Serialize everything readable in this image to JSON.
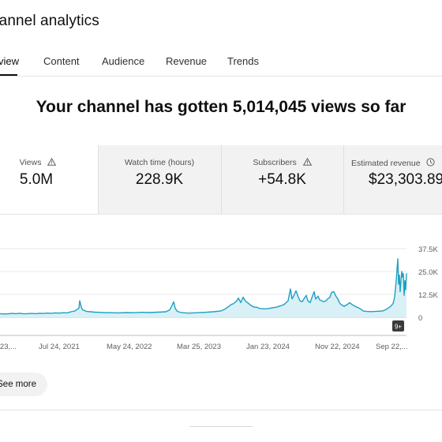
{
  "header": {
    "title": "hannel analytics"
  },
  "tabs": [
    {
      "label": "view",
      "active": true
    },
    {
      "label": "Content",
      "active": false
    },
    {
      "label": "Audience",
      "active": false
    },
    {
      "label": "Revenue",
      "active": false
    },
    {
      "label": "Trends",
      "active": false
    }
  ],
  "headline": "Your channel has gotten 5,014,045 views so far",
  "kpis": [
    {
      "label": "Views",
      "value": "5.0M",
      "icon": "warning-icon"
    },
    {
      "label": "Watch time (hours)",
      "value": "228.9K"
    },
    {
      "label": "Subscribers",
      "value": "+54.8K",
      "icon": "warning-icon"
    },
    {
      "label": "Estimated revenue",
      "value": "$23,303.89",
      "icon": "clock-icon"
    }
  ],
  "chart_data": {
    "type": "area",
    "y_ticks": [
      "37.5K",
      "25.0K",
      "12.5K",
      "0"
    ],
    "ylim": [
      0,
      37500
    ],
    "x_labels": [
      "p 23,...",
      "Jul 24, 2021",
      "May 24, 2022",
      "Mar 25, 2023",
      "Jan 23, 2024",
      "Nov 22, 2024",
      "Sep 22,..."
    ],
    "badge": "9+",
    "series_color": "#1ea0c3",
    "x": [
      0,
      5,
      10,
      15,
      20,
      25,
      30,
      35,
      40,
      45,
      50,
      55,
      60,
      65,
      70,
      75,
      80,
      85,
      90,
      95,
      100,
      101,
      102,
      103,
      104,
      105,
      108,
      110,
      115,
      120,
      125,
      130,
      140,
      150,
      160,
      170,
      180,
      190,
      200,
      210,
      215,
      218,
      220,
      222,
      224,
      226,
      228,
      230,
      232,
      235,
      240,
      250,
      260,
      270,
      280,
      285,
      290,
      293,
      296,
      300,
      302,
      305,
      308,
      310,
      312,
      315,
      318,
      320,
      322,
      325,
      328,
      330,
      335,
      340,
      345,
      350,
      355,
      360,
      365,
      368,
      370,
      373,
      375,
      378,
      380,
      383,
      385,
      388,
      390,
      393,
      395,
      398,
      400,
      403,
      405,
      408,
      410,
      413,
      415,
      418,
      420,
      423,
      425,
      428,
      430,
      432,
      434,
      436,
      438,
      440,
      443,
      446,
      450,
      455,
      458,
      460,
      462,
      465,
      470,
      475,
      480,
      485,
      490,
      495,
      498,
      500,
      502,
      504,
      505,
      506,
      507,
      508,
      509,
      510,
      511,
      512,
      513,
      514,
      515
    ],
    "y": [
      2000,
      1800,
      1900,
      2100,
      2000,
      2200,
      1900,
      2000,
      2100,
      2000,
      2200,
      2100,
      2300,
      2200,
      2400,
      2300,
      2500,
      2400,
      3000,
      3500,
      5000,
      9000,
      7500,
      5500,
      4500,
      4000,
      3500,
      3200,
      3000,
      2800,
      2700,
      2600,
      2500,
      2400,
      2600,
      2500,
      2700,
      2600,
      2800,
      3000,
      4000,
      6500,
      8500,
      5000,
      3500,
      3000,
      2800,
      2600,
      2500,
      2400,
      2300,
      2500,
      2700,
      3000,
      3500,
      4500,
      6000,
      7000,
      7500,
      9000,
      10500,
      8000,
      11000,
      9500,
      8500,
      7500,
      6500,
      6000,
      5500,
      5500,
      5000,
      4800,
      4600,
      4800,
      5200,
      5500,
      6200,
      7000,
      9000,
      15500,
      10000,
      12500,
      14500,
      11000,
      9000,
      8500,
      10000,
      12000,
      9000,
      8000,
      10500,
      14000,
      10000,
      11500,
      9500,
      9000,
      8500,
      9000,
      10000,
      11000,
      13500,
      14000,
      12000,
      10000,
      8000,
      7000,
      6500,
      6000,
      6500,
      7000,
      8000,
      7000,
      6000,
      5000,
      4200,
      3500,
      3300,
      3200,
      3100,
      3200,
      3300,
      3500,
      4500,
      6000,
      7500,
      11000,
      20000,
      32000,
      18000,
      23000,
      14000,
      20000,
      25000,
      22000,
      24000,
      12000,
      20000,
      15000,
      24000
    ]
  }
}
